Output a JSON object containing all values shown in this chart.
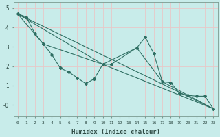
{
  "xlabel": "Humidex (Indice chaleur)",
  "background_color": "#c8ecea",
  "grid_color": "#e8c8c8",
  "line_color": "#2e6e62",
  "xlim": [
    -0.5,
    23.5
  ],
  "ylim": [
    -0.6,
    5.3
  ],
  "yticks": [
    0,
    1,
    2,
    3,
    4,
    5
  ],
  "ytick_labels": [
    "-0",
    "1",
    "2",
    "3",
    "4",
    "5"
  ],
  "xticks": [
    0,
    1,
    2,
    3,
    4,
    5,
    6,
    7,
    8,
    9,
    10,
    11,
    12,
    13,
    14,
    15,
    16,
    17,
    18,
    19,
    20,
    21,
    22,
    23
  ],
  "line1_x": [
    0,
    1,
    2,
    3,
    4,
    5,
    6,
    7,
    8,
    9,
    10,
    11,
    14,
    15,
    16,
    17,
    18,
    19,
    20,
    21,
    22,
    23
  ],
  "line1_y": [
    4.7,
    4.55,
    3.7,
    3.15,
    2.6,
    1.9,
    1.7,
    1.4,
    1.1,
    1.35,
    2.1,
    2.1,
    2.95,
    3.5,
    2.65,
    1.2,
    1.15,
    0.6,
    0.5,
    0.45,
    0.45,
    -0.2
  ],
  "line2_x": [
    0,
    23
  ],
  "line2_y": [
    4.7,
    -0.2
  ],
  "line3_x": [
    0,
    10,
    23
  ],
  "line3_y": [
    4.7,
    2.1,
    -0.2
  ],
  "line4_x": [
    0,
    3,
    10,
    14,
    17,
    20,
    23
  ],
  "line4_y": [
    4.7,
    3.15,
    2.1,
    2.95,
    1.2,
    0.5,
    -0.2
  ]
}
